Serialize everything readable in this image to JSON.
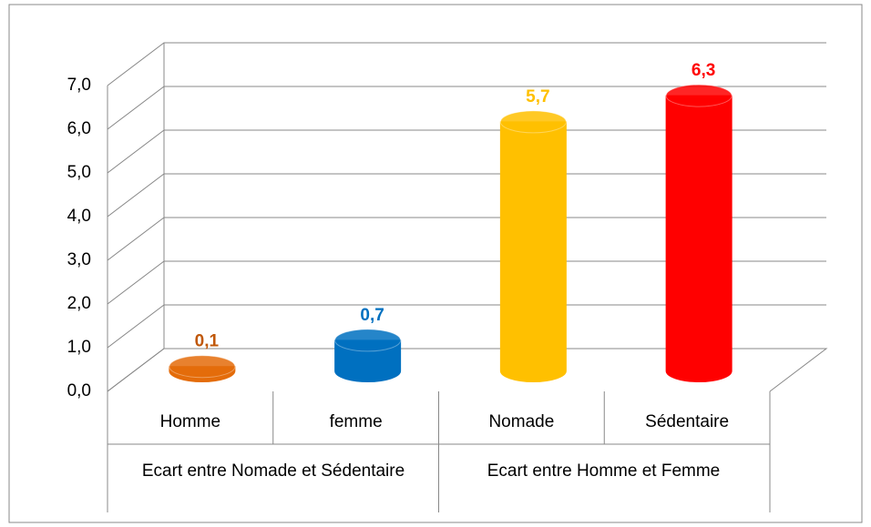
{
  "chart_data": {
    "type": "bar3d",
    "categories": [
      "Homme",
      "femme",
      "Nomade",
      "Sédentaire"
    ],
    "groups": [
      "Ecart entre Nomade et Sédentaire",
      "Ecart entre Homme et Femme"
    ],
    "values": [
      0.1,
      0.7,
      5.7,
      6.3
    ],
    "value_labels": [
      "0,1",
      "0,7",
      "5,7",
      "6,3"
    ],
    "colors": [
      "#e46c0a",
      "#0070c0",
      "#ffc000",
      "#ff0000"
    ],
    "label_colors": [
      "#c0580a",
      "#0070c0",
      "#ffc000",
      "#ff0000"
    ],
    "ylim": [
      0,
      7
    ],
    "yticks": [
      {
        "value": 0,
        "label": "0,0"
      },
      {
        "value": 1,
        "label": "1,0"
      },
      {
        "value": 2,
        "label": "2,0"
      },
      {
        "value": 3,
        "label": "3,0"
      },
      {
        "value": 4,
        "label": "4,0"
      },
      {
        "value": 5,
        "label": "5,0"
      },
      {
        "value": 6,
        "label": "6,0"
      },
      {
        "value": 7,
        "label": "7,0"
      }
    ],
    "grid": true
  }
}
